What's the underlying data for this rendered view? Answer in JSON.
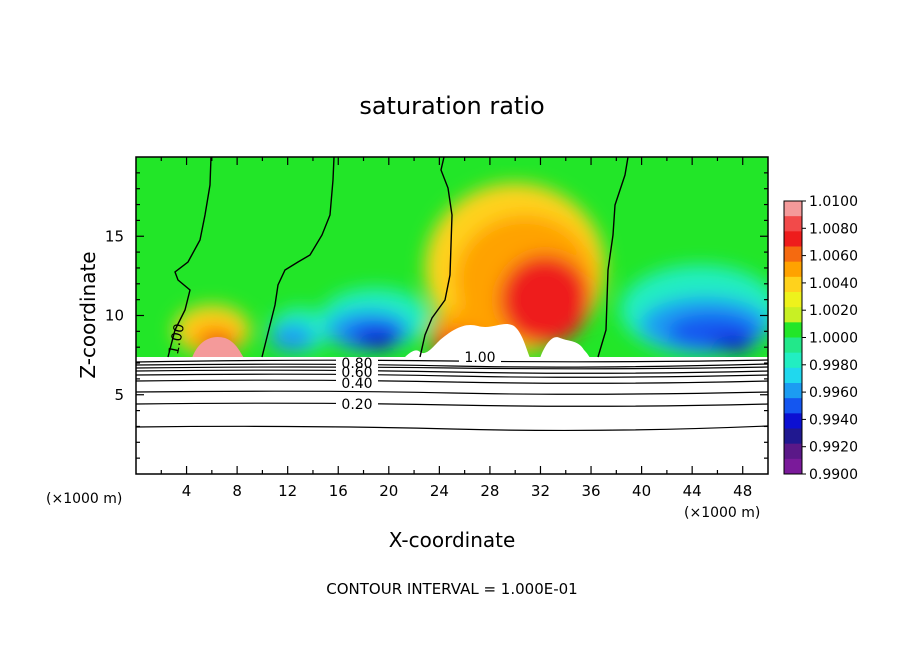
{
  "chart_data": {
    "type": "heatmap",
    "title": "saturation ratio",
    "xlabel": "X-coordinate",
    "ylabel": "Z-coordinate",
    "x_unit": "(×1000 m)",
    "z_unit": "(×1000 m)",
    "xlim": [
      0,
      50
    ],
    "ylim": [
      0,
      20
    ],
    "x_ticks": [
      "4",
      "8",
      "12",
      "16",
      "20",
      "24",
      "28",
      "32",
      "36",
      "40",
      "44",
      "48"
    ],
    "y_ticks": [
      "5",
      "10",
      "15"
    ],
    "colorbar": {
      "labels": [
        "1.0100",
        "1.0080",
        "1.0060",
        "1.0040",
        "1.0020",
        "1.0000",
        "0.9980",
        "0.9960",
        "0.9940",
        "0.9920",
        "0.9900"
      ],
      "colors": [
        "#f49a9a",
        "#f24a4a",
        "#ee1c1c",
        "#f56a10",
        "#ffa200",
        "#ffd21c",
        "#eef21c",
        "#c8f024",
        "#22e628",
        "#22e88a",
        "#22eec2",
        "#20d8ee",
        "#1c9cf2",
        "#1456f0",
        "#0c10d2",
        "#201890",
        "#5a1888",
        "#7a1a9a"
      ]
    },
    "contour_interval": "CONTOUR INTERVAL = 1.000E-01",
    "contour_labels": [
      "1.00",
      "1.00",
      "0.80",
      "0.60",
      "0.40",
      "0.20"
    ],
    "contour_levels_below": [
      0.1,
      0.2,
      0.3,
      0.4,
      0.5,
      0.6,
      0.7,
      0.8,
      0.9
    ],
    "contour_heights_km": [
      3.0,
      4.4,
      5.2,
      5.8,
      6.2,
      6.5,
      6.75,
      6.95,
      7.15
    ],
    "cloud_base_km": 7.3,
    "warm_plumes_x_km": [
      7.8,
      23.0,
      30.5,
      35.0
    ],
    "dry_zones_x_km": [
      18.5,
      45.0
    ],
    "saturation_line_x_km": [
      [
        6,
        9.5
      ],
      [
        16,
        11
      ],
      [
        24.5,
        22
      ],
      [
        38.5,
        36
      ]
    ]
  }
}
